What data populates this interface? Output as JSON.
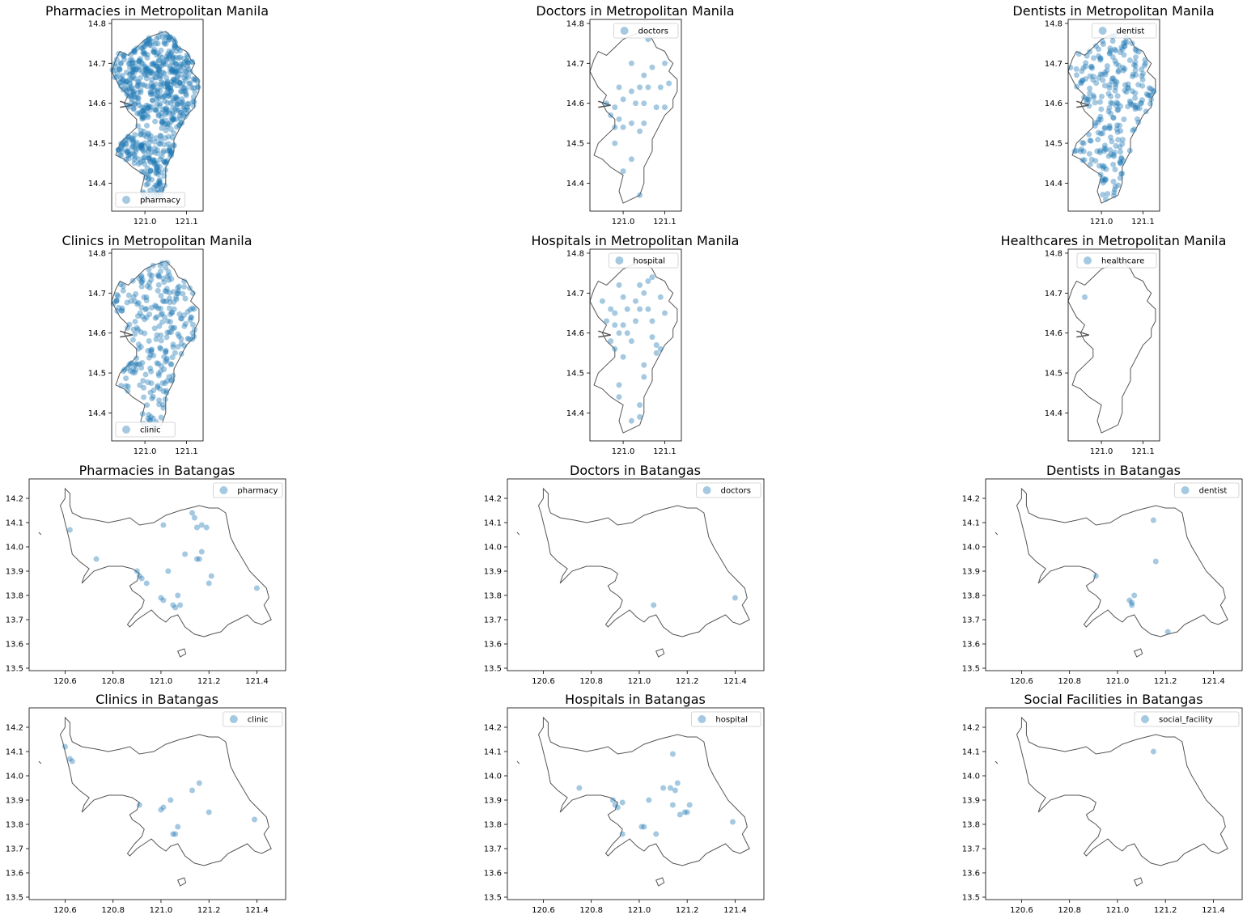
{
  "figure": {
    "point_color": "#1f77b4",
    "point_alpha": 0.4,
    "outline_color": "#555555"
  },
  "panels": [
    {
      "id": "mm-pharmacy",
      "title": "Pharmacies in Metropolitan Manila",
      "region": "Metropolitan Manila",
      "facility": "pharmacy",
      "legend_label": "pharmacy",
      "legend_position": "lower-left",
      "xlim": [
        120.92,
        121.14
      ],
      "ylim": [
        14.33,
        14.81
      ],
      "xticks": [
        "121.0",
        "121.1"
      ],
      "yticks": [
        "14.4",
        "14.5",
        "14.6",
        "14.7",
        "14.8"
      ],
      "density": "very high"
    },
    {
      "id": "mm-doctors",
      "title": "Doctors in Metropolitan Manila",
      "region": "Metropolitan Manila",
      "facility": "doctors",
      "legend_label": "doctors",
      "legend_position": "upper-right",
      "xlim": [
        120.92,
        121.14
      ],
      "ylim": [
        14.33,
        14.81
      ],
      "xticks": [
        "121.0",
        "121.1"
      ],
      "yticks": [
        "14.4",
        "14.5",
        "14.6",
        "14.7",
        "14.8"
      ],
      "density": "low"
    },
    {
      "id": "mm-dentist",
      "title": "Dentists in Metropolitan Manila",
      "region": "Metropolitan Manila",
      "facility": "dentist",
      "legend_label": "dentist",
      "legend_position": "upper-right",
      "xlim": [
        120.92,
        121.14
      ],
      "ylim": [
        14.33,
        14.81
      ],
      "xticks": [
        "121.0",
        "121.1"
      ],
      "yticks": [
        "14.4",
        "14.5",
        "14.6",
        "14.7",
        "14.8"
      ],
      "density": "high"
    },
    {
      "id": "mm-clinic",
      "title": "Clinics in Metropolitan Manila",
      "region": "Metropolitan Manila",
      "facility": "clinic",
      "legend_label": "clinic",
      "legend_position": "lower-left",
      "xlim": [
        120.92,
        121.14
      ],
      "ylim": [
        14.33,
        14.81
      ],
      "xticks": [
        "121.0",
        "121.1"
      ],
      "yticks": [
        "14.4",
        "14.5",
        "14.6",
        "14.7",
        "14.8"
      ],
      "density": "high"
    },
    {
      "id": "mm-hospital",
      "title": "Hospitals in Metropolitan Manila",
      "region": "Metropolitan Manila",
      "facility": "hospital",
      "legend_label": "hospital",
      "legend_position": "upper-right",
      "xlim": [
        120.92,
        121.14
      ],
      "ylim": [
        14.33,
        14.81
      ],
      "xticks": [
        "121.0",
        "121.1"
      ],
      "yticks": [
        "14.4",
        "14.5",
        "14.6",
        "14.7",
        "14.8"
      ],
      "density": "medium"
    },
    {
      "id": "mm-healthcare",
      "title": "Healthcares in Metropolitan Manila",
      "region": "Metropolitan Manila",
      "facility": "healthcare",
      "legend_label": "healthcare",
      "legend_position": "upper-right",
      "xlim": [
        120.92,
        121.14
      ],
      "ylim": [
        14.33,
        14.81
      ],
      "xticks": [
        "121.0",
        "121.1"
      ],
      "yticks": [
        "14.4",
        "14.5",
        "14.6",
        "14.7",
        "14.8"
      ],
      "density": "single"
    },
    {
      "id": "bt-pharmacy",
      "title": "Pharmacies in Batangas",
      "region": "Batangas",
      "facility": "pharmacy",
      "legend_label": "pharmacy",
      "legend_position": "upper-right",
      "xlim": [
        120.45,
        121.52
      ],
      "ylim": [
        13.49,
        14.28
      ],
      "xticks": [
        "120.6",
        "120.8",
        "121.0",
        "121.2",
        "121.4"
      ],
      "yticks": [
        "13.5",
        "13.6",
        "13.7",
        "13.8",
        "13.9",
        "14.0",
        "14.1",
        "14.2"
      ]
    },
    {
      "id": "bt-doctors",
      "title": "Doctors in Batangas",
      "region": "Batangas",
      "facility": "doctors",
      "legend_label": "doctors",
      "legend_position": "upper-right",
      "xlim": [
        120.45,
        121.52
      ],
      "ylim": [
        13.49,
        14.28
      ],
      "xticks": [
        "120.6",
        "120.8",
        "121.0",
        "121.2",
        "121.4"
      ],
      "yticks": [
        "13.5",
        "13.6",
        "13.7",
        "13.8",
        "13.9",
        "14.0",
        "14.1",
        "14.2"
      ]
    },
    {
      "id": "bt-dentist",
      "title": "Dentists in Batangas",
      "region": "Batangas",
      "facility": "dentist",
      "legend_label": "dentist",
      "legend_position": "upper-right",
      "xlim": [
        120.45,
        121.52
      ],
      "ylim": [
        13.49,
        14.28
      ],
      "xticks": [
        "120.6",
        "120.8",
        "121.0",
        "121.2",
        "121.4"
      ],
      "yticks": [
        "13.5",
        "13.6",
        "13.7",
        "13.8",
        "13.9",
        "14.0",
        "14.1",
        "14.2"
      ]
    },
    {
      "id": "bt-clinic",
      "title": "Clinics in Batangas",
      "region": "Batangas",
      "facility": "clinic",
      "legend_label": "clinic",
      "legend_position": "upper-right",
      "xlim": [
        120.45,
        121.52
      ],
      "ylim": [
        13.49,
        14.28
      ],
      "xticks": [
        "120.6",
        "120.8",
        "121.0",
        "121.2",
        "121.4"
      ],
      "yticks": [
        "13.5",
        "13.6",
        "13.7",
        "13.8",
        "13.9",
        "14.0",
        "14.1",
        "14.2"
      ]
    },
    {
      "id": "bt-hospital",
      "title": "Hospitals in Batangas",
      "region": "Batangas",
      "facility": "hospital",
      "legend_label": "hospital",
      "legend_position": "upper-right",
      "xlim": [
        120.45,
        121.52
      ],
      "ylim": [
        13.49,
        14.28
      ],
      "xticks": [
        "120.6",
        "120.8",
        "121.0",
        "121.2",
        "121.4"
      ],
      "yticks": [
        "13.5",
        "13.6",
        "13.7",
        "13.8",
        "13.9",
        "14.0",
        "14.1",
        "14.2"
      ]
    },
    {
      "id": "bt-social",
      "title": "Social Facilities in Batangas",
      "region": "Batangas",
      "facility": "social_facility",
      "legend_label": "social_facility",
      "legend_position": "upper-right",
      "xlim": [
        120.45,
        121.52
      ],
      "ylim": [
        13.49,
        14.28
      ],
      "xticks": [
        "120.6",
        "120.8",
        "121.0",
        "121.2",
        "121.4"
      ],
      "yticks": [
        "13.5",
        "13.6",
        "13.7",
        "13.8",
        "13.9",
        "14.0",
        "14.1",
        "14.2"
      ]
    }
  ],
  "points": {
    "mm-doctors": [
      [
        121.06,
        14.76
      ],
      [
        121.02,
        14.7
      ],
      [
        121.07,
        14.69
      ],
      [
        121.1,
        14.7
      ],
      [
        121.05,
        14.67
      ],
      [
        120.99,
        14.64
      ],
      [
        121.02,
        14.63
      ],
      [
        121.04,
        14.64
      ],
      [
        121.06,
        14.64
      ],
      [
        121.09,
        14.64
      ],
      [
        121.11,
        14.65
      ],
      [
        120.96,
        14.6
      ],
      [
        120.98,
        14.59
      ],
      [
        121.0,
        14.61
      ],
      [
        121.03,
        14.6
      ],
      [
        121.05,
        14.6
      ],
      [
        121.08,
        14.59
      ],
      [
        121.1,
        14.59
      ],
      [
        120.97,
        14.57
      ],
      [
        120.99,
        14.56
      ],
      [
        121.02,
        14.55
      ],
      [
        121.05,
        14.55
      ],
      [
        121.04,
        14.53
      ],
      [
        120.98,
        14.54
      ],
      [
        121.0,
        14.54
      ],
      [
        120.98,
        14.5
      ],
      [
        121.02,
        14.46
      ],
      [
        121.0,
        14.43
      ],
      [
        121.04,
        14.37
      ]
    ],
    "mm-hospital": [
      [
        121.07,
        14.74
      ],
      [
        121.06,
        14.73
      ],
      [
        121.04,
        14.72
      ],
      [
        121.05,
        14.7
      ],
      [
        120.99,
        14.72
      ],
      [
        121.0,
        14.69
      ],
      [
        121.03,
        14.68
      ],
      [
        121.09,
        14.69
      ],
      [
        120.95,
        14.68
      ],
      [
        120.97,
        14.66
      ],
      [
        120.98,
        14.65
      ],
      [
        121.01,
        14.66
      ],
      [
        121.04,
        14.66
      ],
      [
        121.06,
        14.66
      ],
      [
        121.1,
        14.65
      ],
      [
        120.96,
        14.63
      ],
      [
        120.98,
        14.62
      ],
      [
        121.0,
        14.62
      ],
      [
        121.03,
        14.63
      ],
      [
        121.07,
        14.63
      ],
      [
        120.99,
        14.6
      ],
      [
        121.01,
        14.6
      ],
      [
        120.97,
        14.58
      ],
      [
        121.02,
        14.58
      ],
      [
        121.07,
        14.59
      ],
      [
        121.08,
        14.57
      ],
      [
        121.09,
        14.56
      ],
      [
        121.08,
        14.55
      ],
      [
        120.98,
        14.56
      ],
      [
        121.0,
        14.54
      ],
      [
        121.05,
        14.52
      ],
      [
        121.05,
        14.49
      ],
      [
        120.99,
        14.47
      ],
      [
        120.99,
        14.44
      ],
      [
        121.04,
        14.42
      ],
      [
        121.04,
        14.39
      ],
      [
        121.02,
        14.38
      ]
    ],
    "mm-healthcare": [
      [
        120.96,
        14.69
      ]
    ],
    "bt-pharmacy": [
      [
        120.62,
        14.07
      ],
      [
        120.73,
        13.95
      ],
      [
        120.9,
        13.9
      ],
      [
        120.91,
        13.88
      ],
      [
        120.92,
        13.87
      ],
      [
        120.94,
        13.85
      ],
      [
        121.01,
        14.09
      ],
      [
        121.03,
        13.9
      ],
      [
        121.0,
        13.79
      ],
      [
        121.01,
        13.78
      ],
      [
        121.05,
        13.76
      ],
      [
        121.06,
        13.75
      ],
      [
        121.07,
        13.8
      ],
      [
        121.08,
        13.76
      ],
      [
        121.1,
        13.97
      ],
      [
        121.13,
        14.14
      ],
      [
        121.14,
        14.12
      ],
      [
        121.15,
        14.08
      ],
      [
        121.17,
        14.09
      ],
      [
        121.19,
        14.08
      ],
      [
        121.15,
        13.95
      ],
      [
        121.16,
        13.95
      ],
      [
        121.17,
        13.98
      ],
      [
        121.2,
        13.85
      ],
      [
        121.21,
        13.88
      ],
      [
        121.4,
        13.83
      ]
    ],
    "bt-doctors": [
      [
        121.06,
        13.76
      ],
      [
        121.4,
        13.79
      ]
    ],
    "bt-dentist": [
      [
        121.15,
        14.11
      ],
      [
        121.16,
        13.94
      ],
      [
        120.91,
        13.88
      ],
      [
        121.05,
        13.78
      ],
      [
        121.06,
        13.76
      ],
      [
        121.07,
        13.8
      ],
      [
        121.06,
        13.77
      ],
      [
        121.21,
        13.65
      ]
    ],
    "bt-clinic": [
      [
        120.6,
        14.12
      ],
      [
        120.62,
        14.07
      ],
      [
        120.63,
        14.06
      ],
      [
        120.91,
        13.88
      ],
      [
        121.0,
        13.86
      ],
      [
        121.01,
        13.87
      ],
      [
        121.04,
        13.9
      ],
      [
        121.05,
        13.76
      ],
      [
        121.06,
        13.76
      ],
      [
        121.07,
        13.79
      ],
      [
        121.13,
        13.94
      ],
      [
        121.16,
        13.97
      ],
      [
        121.2,
        13.85
      ],
      [
        121.39,
        13.82
      ]
    ],
    "bt-hospital": [
      [
        120.75,
        13.95
      ],
      [
        120.89,
        13.9
      ],
      [
        120.9,
        13.88
      ],
      [
        120.91,
        13.87
      ],
      [
        120.93,
        13.89
      ],
      [
        120.93,
        13.76
      ],
      [
        121.01,
        13.79
      ],
      [
        121.02,
        13.79
      ],
      [
        121.04,
        13.9
      ],
      [
        121.07,
        13.76
      ],
      [
        121.1,
        13.95
      ],
      [
        121.13,
        13.95
      ],
      [
        121.14,
        14.09
      ],
      [
        121.15,
        13.94
      ],
      [
        121.16,
        13.97
      ],
      [
        121.17,
        13.84
      ],
      [
        121.19,
        13.85
      ],
      [
        121.2,
        13.85
      ],
      [
        121.21,
        13.88
      ],
      [
        121.14,
        13.88
      ],
      [
        121.39,
        13.81
      ]
    ],
    "bt-social": [
      [
        121.15,
        14.1
      ]
    ]
  },
  "outlines": {
    "Metropolitan Manila": [
      [
        121.02,
        14.77
      ],
      [
        121.05,
        14.78
      ],
      [
        121.07,
        14.76
      ],
      [
        121.08,
        14.74
      ],
      [
        121.1,
        14.73
      ],
      [
        121.11,
        14.71
      ],
      [
        121.12,
        14.7
      ],
      [
        121.11,
        14.68
      ],
      [
        121.13,
        14.66
      ],
      [
        121.13,
        14.63
      ],
      [
        121.12,
        14.61
      ],
      [
        121.12,
        14.59
      ],
      [
        121.1,
        14.57
      ],
      [
        121.09,
        14.55
      ],
      [
        121.08,
        14.53
      ],
      [
        121.07,
        14.51
      ],
      [
        121.07,
        14.48
      ],
      [
        121.06,
        14.46
      ],
      [
        121.05,
        14.44
      ],
      [
        121.05,
        14.42
      ],
      [
        121.05,
        14.4
      ],
      [
        121.04,
        14.37
      ],
      [
        121.0,
        14.35
      ],
      [
        120.99,
        14.38
      ],
      [
        121.0,
        14.42
      ],
      [
        120.97,
        14.44
      ],
      [
        120.95,
        14.46
      ],
      [
        120.93,
        14.47
      ],
      [
        120.94,
        14.5
      ],
      [
        120.96,
        14.52
      ],
      [
        120.98,
        14.54
      ],
      [
        120.98,
        14.56
      ],
      [
        120.96,
        14.58
      ],
      [
        120.95,
        14.6
      ],
      [
        120.96,
        14.62
      ],
      [
        120.94,
        14.64
      ],
      [
        120.93,
        14.66
      ],
      [
        120.92,
        14.68
      ],
      [
        120.93,
        14.71
      ],
      [
        120.94,
        14.73
      ],
      [
        120.96,
        14.72
      ],
      [
        120.98,
        14.74
      ],
      [
        121.0,
        14.76
      ]
    ],
    "Batangas": [
      [
        120.6,
        14.24
      ],
      [
        120.62,
        14.22
      ],
      [
        120.62,
        14.17
      ],
      [
        120.63,
        14.14
      ],
      [
        120.67,
        14.12
      ],
      [
        120.73,
        14.11
      ],
      [
        120.78,
        14.1
      ],
      [
        120.83,
        14.11
      ],
      [
        120.87,
        14.12
      ],
      [
        120.91,
        14.09
      ],
      [
        120.97,
        14.1
      ],
      [
        121.02,
        14.13
      ],
      [
        121.08,
        14.15
      ],
      [
        121.12,
        14.16
      ],
      [
        121.16,
        14.17
      ],
      [
        121.2,
        14.16
      ],
      [
        121.24,
        14.16
      ],
      [
        121.27,
        14.14
      ],
      [
        121.28,
        14.09
      ],
      [
        121.29,
        14.04
      ],
      [
        121.31,
        14.0
      ],
      [
        121.34,
        13.95
      ],
      [
        121.37,
        13.9
      ],
      [
        121.4,
        13.87
      ],
      [
        121.44,
        13.83
      ],
      [
        121.45,
        13.79
      ],
      [
        121.43,
        13.76
      ],
      [
        121.46,
        13.7
      ],
      [
        121.42,
        13.68
      ],
      [
        121.39,
        13.69
      ],
      [
        121.36,
        13.72
      ],
      [
        121.32,
        13.7
      ],
      [
        121.28,
        13.68
      ],
      [
        121.25,
        13.65
      ],
      [
        121.21,
        13.64
      ],
      [
        121.18,
        13.63
      ],
      [
        121.14,
        13.64
      ],
      [
        121.1,
        13.67
      ],
      [
        121.07,
        13.72
      ],
      [
        121.04,
        13.71
      ],
      [
        121.02,
        13.69
      ],
      [
        120.99,
        13.71
      ],
      [
        120.96,
        13.74
      ],
      [
        120.93,
        13.72
      ],
      [
        120.9,
        13.7
      ],
      [
        120.87,
        13.67
      ],
      [
        120.86,
        13.68
      ],
      [
        120.89,
        13.72
      ],
      [
        120.92,
        13.75
      ],
      [
        120.93,
        13.78
      ],
      [
        120.91,
        13.8
      ],
      [
        120.88,
        13.82
      ],
      [
        120.87,
        13.84
      ],
      [
        120.9,
        13.86
      ],
      [
        120.91,
        13.89
      ],
      [
        120.88,
        13.91
      ],
      [
        120.84,
        13.92
      ],
      [
        120.78,
        13.92
      ],
      [
        120.72,
        13.9
      ],
      [
        120.69,
        13.87
      ],
      [
        120.67,
        13.85
      ],
      [
        120.68,
        13.88
      ],
      [
        120.7,
        13.91
      ],
      [
        120.66,
        13.94
      ],
      [
        120.63,
        13.97
      ],
      [
        120.62,
        14.02
      ],
      [
        120.61,
        14.06
      ],
      [
        120.6,
        14.1
      ],
      [
        120.59,
        14.14
      ],
      [
        120.58,
        14.17
      ],
      [
        120.6,
        14.2
      ]
    ]
  }
}
